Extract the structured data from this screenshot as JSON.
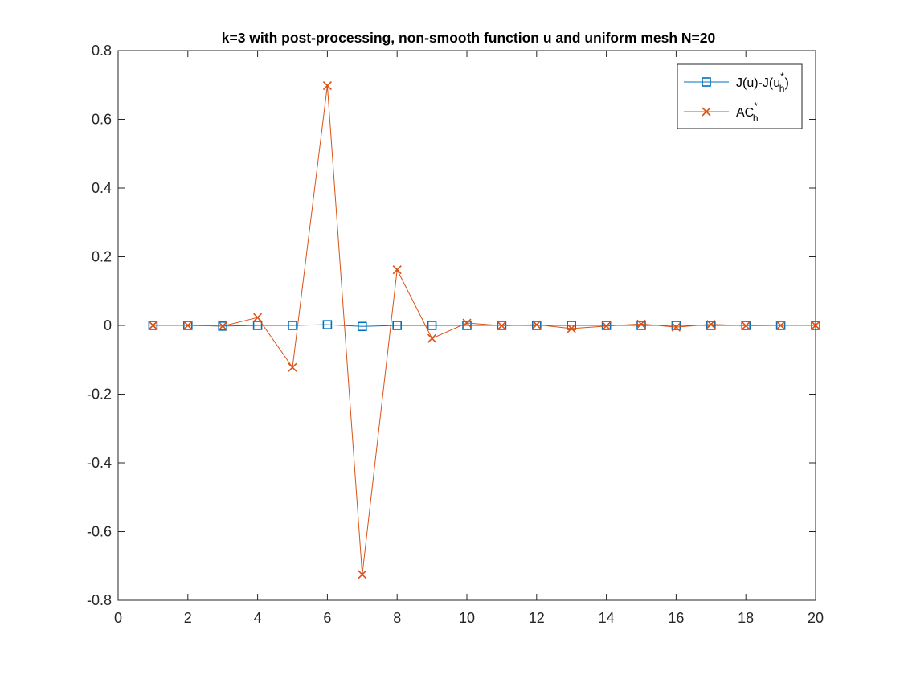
{
  "chart_data": {
    "type": "line",
    "title": "k=3 with post-processing, non-smooth function u and uniform mesh N=20",
    "xlabel": "",
    "ylabel": "",
    "xlim": [
      0,
      20
    ],
    "ylim": [
      -0.8,
      0.8
    ],
    "xticks": [
      0,
      2,
      4,
      6,
      8,
      10,
      12,
      14,
      16,
      18,
      20
    ],
    "yticks": [
      -0.8,
      -0.6,
      -0.4,
      -0.2,
      0,
      0.2,
      0.4,
      0.6,
      0.8
    ],
    "grid": false,
    "legend_position": "top-right",
    "x": [
      1,
      2,
      3,
      4,
      5,
      6,
      7,
      8,
      9,
      10,
      11,
      12,
      13,
      14,
      15,
      16,
      17,
      18,
      19,
      20
    ],
    "series": [
      {
        "name": "J(u)-J(u_h^*)",
        "legend_main": "J(u)-J(u",
        "legend_sub": "h",
        "legend_sup": "*",
        "legend_tail": ")",
        "marker": "square",
        "color": "#0072BD",
        "values": [
          0.0,
          0.0,
          -0.002,
          0.0,
          0.0,
          0.002,
          -0.003,
          0.0,
          0.0,
          0.0,
          0.0,
          0.0,
          0.0,
          0.0,
          0.0,
          0.0,
          0.0,
          0.0,
          0.0,
          0.0
        ]
      },
      {
        "name": "AC_h^*",
        "legend_main": "AC",
        "legend_sub": "h",
        "legend_sup": "*",
        "legend_tail": "",
        "marker": "x",
        "color": "#D95319",
        "values": [
          0.0,
          0.0,
          -0.002,
          0.023,
          -0.122,
          0.698,
          -0.725,
          0.162,
          -0.038,
          0.007,
          -0.001,
          0.002,
          -0.009,
          -0.002,
          0.004,
          -0.005,
          0.003,
          -0.001,
          0.0,
          0.0
        ]
      }
    ]
  }
}
